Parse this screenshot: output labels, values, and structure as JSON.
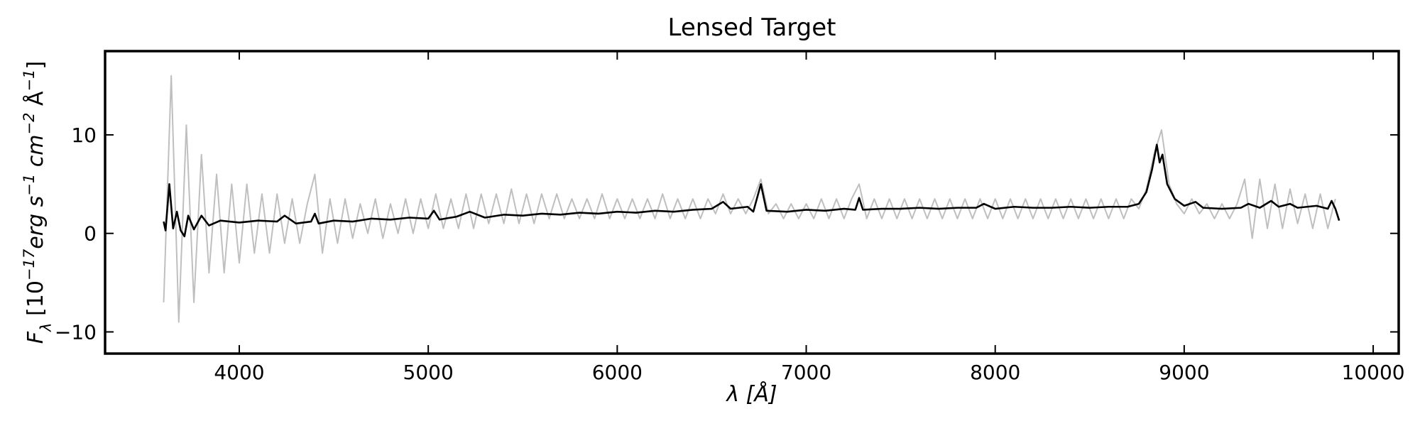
{
  "chart_data": {
    "type": "line",
    "title": "Lensed Target",
    "xlabel": "λ [Å]",
    "ylabel": [
      {
        "text": "F",
        "baseline": "base"
      },
      {
        "text": "λ",
        "baseline": "sub"
      },
      {
        "text": " [10",
        "baseline": "base"
      },
      {
        "text": "−17",
        "baseline": "sup"
      },
      {
        "text": "erg s",
        "baseline": "base"
      },
      {
        "text": "−1",
        "baseline": "sup"
      },
      {
        "text": " cm",
        "baseline": "base"
      },
      {
        "text": "−2",
        "baseline": "sup"
      },
      {
        "text": " Å",
        "baseline": "base"
      },
      {
        "text": "−1",
        "baseline": "sup"
      },
      {
        "text": "]",
        "baseline": "base"
      }
    ],
    "xlim": [
      3290,
      10135
    ],
    "ylim": [
      -12.2,
      18.5
    ],
    "xticks": [
      4000,
      5000,
      6000,
      7000,
      8000,
      9000,
      10000
    ],
    "yticks": [
      {
        "value": -10,
        "label": "−10"
      },
      0,
      10
    ],
    "grid": false,
    "series": [
      {
        "color": "#bfbfbf",
        "width": 2,
        "x": [
          3600,
          3640,
          3680,
          3720,
          3760,
          3800,
          3840,
          3880,
          3920,
          3960,
          4000,
          4040,
          4080,
          4120,
          4160,
          4200,
          4240,
          4280,
          4320,
          4360,
          4400,
          4440,
          4480,
          4520,
          4560,
          4600,
          4640,
          4680,
          4720,
          4760,
          4800,
          4840,
          4880,
          4920,
          4960,
          5000,
          5040,
          5080,
          5120,
          5160,
          5200,
          5240,
          5280,
          5320,
          5360,
          5400,
          5440,
          5480,
          5520,
          5560,
          5600,
          5640,
          5680,
          5720,
          5760,
          5800,
          5840,
          5880,
          5920,
          5960,
          6000,
          6040,
          6080,
          6120,
          6160,
          6200,
          6240,
          6280,
          6320,
          6360,
          6400,
          6440,
          6480,
          6520,
          6560,
          6600,
          6640,
          6680,
          6720,
          6760,
          6800,
          6840,
          6880,
          6920,
          6960,
          7000,
          7040,
          7080,
          7120,
          7160,
          7200,
          7240,
          7280,
          7320,
          7360,
          7400,
          7440,
          7480,
          7520,
          7560,
          7600,
          7640,
          7680,
          7720,
          7760,
          7800,
          7840,
          7880,
          7920,
          7960,
          8000,
          8040,
          8080,
          8120,
          8160,
          8200,
          8240,
          8280,
          8320,
          8360,
          8400,
          8440,
          8480,
          8520,
          8560,
          8600,
          8640,
          8680,
          8720,
          8760,
          8800,
          8840,
          8880,
          8920,
          8960,
          9000,
          9040,
          9080,
          9120,
          9160,
          9200,
          9240,
          9280,
          9320,
          9360,
          9400,
          9440,
          9480,
          9520,
          9560,
          9600,
          9640,
          9680,
          9720,
          9760,
          9800
        ],
        "values": [
          -7,
          16,
          -9,
          11,
          -7,
          8,
          -4,
          6,
          -4,
          5,
          -3,
          5,
          -2,
          4,
          -2,
          4,
          -1,
          3.5,
          -1,
          3,
          6,
          -2,
          3.5,
          -1,
          3.5,
          -0.5,
          3,
          0,
          3.5,
          -0.5,
          3,
          0,
          3.5,
          0,
          3.5,
          0.5,
          4,
          0.5,
          3.5,
          0.5,
          4,
          0.5,
          4,
          1,
          4,
          1,
          4.5,
          1,
          4,
          1,
          4,
          1.5,
          4,
          1.5,
          3.5,
          1.5,
          3.5,
          1.5,
          4,
          1.5,
          3.5,
          1.5,
          3.5,
          1.5,
          3.5,
          1.5,
          4,
          1.5,
          3.5,
          1.5,
          3.5,
          1.5,
          3.5,
          2,
          4,
          2,
          3.5,
          2,
          3.5,
          5.5,
          2,
          3,
          1.5,
          3,
          1.5,
          3,
          1.5,
          3.5,
          1.5,
          3.5,
          1.5,
          3.5,
          5,
          1.5,
          3.5,
          1.5,
          3.5,
          1.5,
          3.5,
          1.5,
          3.5,
          1.5,
          3.5,
          1.5,
          3.5,
          1.5,
          3.5,
          1.5,
          3.5,
          1.5,
          3.5,
          1.5,
          3.5,
          1.5,
          3.5,
          1.5,
          3.5,
          1.5,
          3.5,
          1.5,
          3.5,
          1.5,
          3.5,
          1.5,
          3.5,
          1.5,
          3.5,
          1.5,
          3.5,
          2.5,
          4.5,
          8,
          10.5,
          5,
          3,
          2,
          3.5,
          2,
          3,
          1.5,
          3,
          1.5,
          3,
          5.5,
          -0.5,
          5.5,
          0.5,
          5,
          0.5,
          4.5,
          1,
          4,
          0.5,
          4,
          0.5,
          3.5
        ]
      },
      {
        "color": "#000000",
        "width": 2.6,
        "x": [
          3600,
          3610,
          3630,
          3650,
          3670,
          3690,
          3710,
          3730,
          3760,
          3800,
          3840,
          3900,
          4000,
          4100,
          4200,
          4240,
          4300,
          4380,
          4400,
          4420,
          4500,
          4600,
          4700,
          4800,
          4900,
          5000,
          5030,
          5060,
          5150,
          5220,
          5300,
          5400,
          5500,
          5600,
          5700,
          5800,
          5900,
          6000,
          6100,
          6200,
          6300,
          6400,
          6500,
          6560,
          6600,
          6690,
          6720,
          6760,
          6790,
          6900,
          7000,
          7100,
          7200,
          7260,
          7280,
          7300,
          7400,
          7500,
          7600,
          7700,
          7800,
          7900,
          7940,
          8000,
          8100,
          8200,
          8300,
          8400,
          8500,
          8600,
          8700,
          8760,
          8800,
          8830,
          8855,
          8870,
          8885,
          8910,
          8950,
          9000,
          9060,
          9100,
          9200,
          9300,
          9340,
          9400,
          9460,
          9500,
          9560,
          9600,
          9700,
          9760,
          9780,
          9800,
          9820
        ],
        "values": [
          1.2,
          0.3,
          5,
          0.5,
          2.2,
          0.3,
          -0.3,
          1.8,
          0.4,
          1.8,
          0.8,
          1.3,
          1.1,
          1.3,
          1.2,
          1.8,
          1.0,
          1.2,
          2.0,
          1.0,
          1.3,
          1.2,
          1.5,
          1.4,
          1.6,
          1.5,
          2.3,
          1.4,
          1.7,
          2.2,
          1.6,
          1.9,
          1.8,
          2.0,
          1.9,
          2.1,
          2.0,
          2.2,
          2.1,
          2.3,
          2.2,
          2.4,
          2.5,
          3.2,
          2.5,
          2.7,
          2.2,
          5.0,
          2.3,
          2.2,
          2.4,
          2.3,
          2.5,
          2.4,
          3.6,
          2.4,
          2.5,
          2.5,
          2.6,
          2.5,
          2.6,
          2.6,
          3.0,
          2.5,
          2.7,
          2.6,
          2.6,
          2.7,
          2.6,
          2.7,
          2.7,
          3.0,
          4.2,
          6.5,
          9.0,
          7.2,
          8.0,
          5.0,
          3.5,
          2.8,
          3.2,
          2.6,
          2.5,
          2.6,
          3.0,
          2.6,
          3.3,
          2.7,
          3.0,
          2.6,
          2.8,
          2.5,
          3.3,
          2.5,
          1.3
        ]
      }
    ]
  }
}
